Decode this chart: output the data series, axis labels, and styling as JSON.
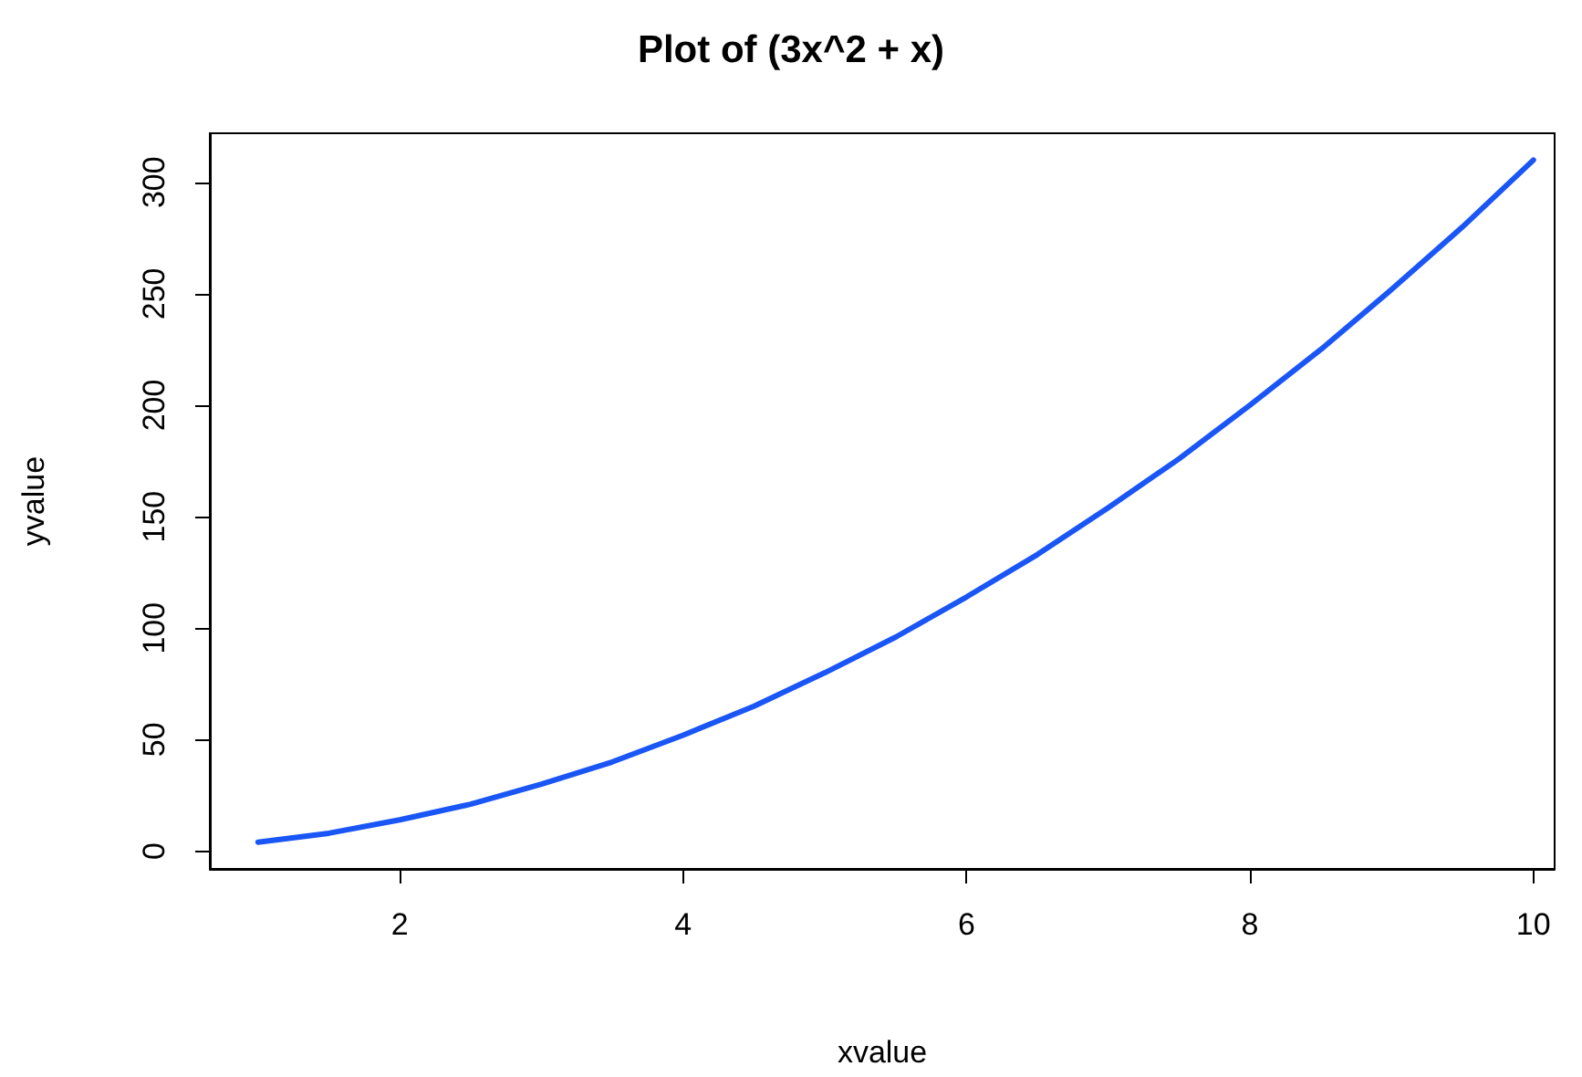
{
  "chart_data": {
    "type": "line",
    "title": "Plot of (3x^2 + x)",
    "xlabel": "xvalue",
    "ylabel": "yvalue",
    "x": [
      1,
      1.5,
      2,
      2.5,
      3,
      3.5,
      4,
      4.5,
      5,
      5.5,
      6,
      6.5,
      7,
      7.5,
      8,
      8.5,
      9,
      9.5,
      10
    ],
    "series": [
      {
        "color": "#1a56f5",
        "values": [
          4,
          8,
          14,
          21,
          30,
          40,
          52,
          65,
          80,
          96,
          114,
          133,
          154,
          176,
          200,
          225,
          252,
          280,
          310
        ]
      }
    ],
    "xlim": [
      0.66,
      10.15
    ],
    "xticks": [
      2,
      4,
      6,
      8,
      10
    ],
    "ylim": [
      -8,
      322
    ],
    "yticks": [
      0,
      50,
      100,
      150,
      200,
      250,
      300
    ],
    "grid": false,
    "marker": "none",
    "line_style": "solid"
  }
}
